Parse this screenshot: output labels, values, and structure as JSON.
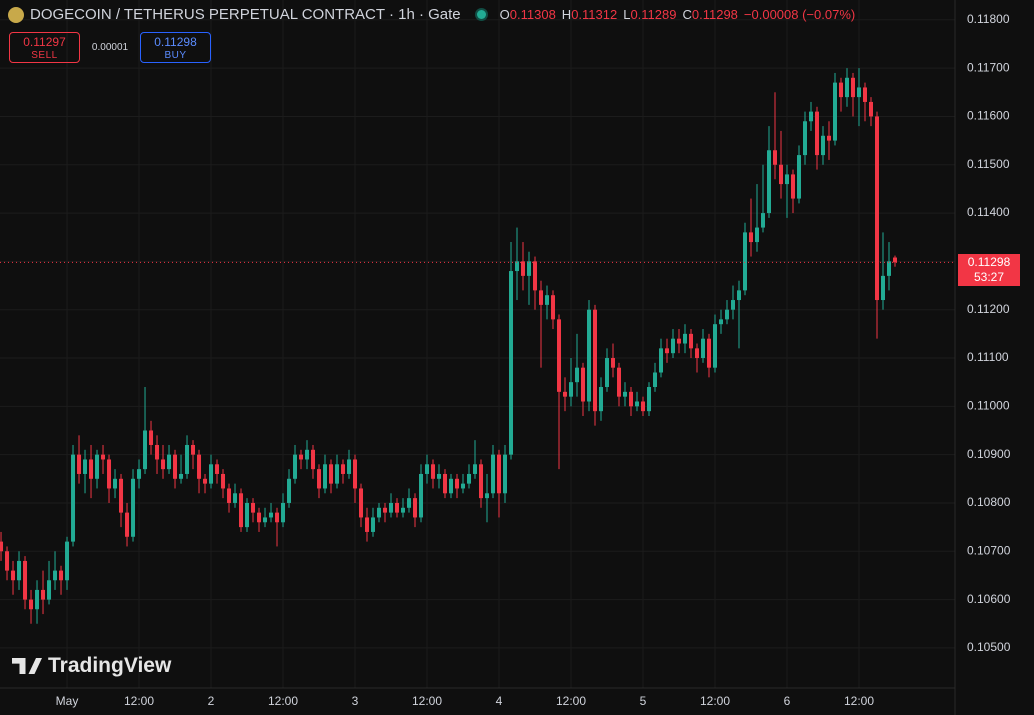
{
  "header": {
    "title": "DOGECOIN / TETHERUS PERPETUAL CONTRACT · 1h · Gate",
    "ohlc": [
      {
        "label": "O",
        "value": 0.11308
      },
      {
        "label": "H",
        "value": 0.11312
      },
      {
        "label": "L",
        "value": 0.11289
      },
      {
        "label": "C",
        "value": 0.11298
      }
    ],
    "change": "−0.00008 (−0.07%)"
  },
  "trade": {
    "sell": {
      "price": 0.11297,
      "label": "SELL"
    },
    "spread": 1e-05,
    "buy": {
      "price": 0.11298,
      "label": "BUY"
    }
  },
  "watermark": "TradingView",
  "chart_data": {
    "type": "candlestick",
    "up_color": "#22ab94",
    "down_color": "#f23645",
    "grid": true,
    "last_price": {
      "value": 0.11298,
      "countdown": "53:27"
    },
    "xlim": [
      -0.17,
      159
    ],
    "xticks": [
      {
        "value": 11,
        "label": "May"
      },
      {
        "value": 23,
        "label": "12:00"
      },
      {
        "value": 35,
        "label": "2"
      },
      {
        "value": 47,
        "label": "12:00"
      },
      {
        "value": 59,
        "label": "3"
      },
      {
        "value": 71,
        "label": "12:00"
      },
      {
        "value": 83,
        "label": "4"
      },
      {
        "value": 95,
        "label": "12:00"
      },
      {
        "value": 107,
        "label": "5"
      },
      {
        "value": 119,
        "label": "12:00"
      },
      {
        "value": 131,
        "label": "6"
      },
      {
        "value": 143,
        "label": "12:00"
      }
    ],
    "ylim": [
      0.10417,
      0.11841
    ],
    "yticks": [
      {
        "value": 0.105,
        "label": "0.10500"
      },
      {
        "value": 0.106,
        "label": "0.10600"
      },
      {
        "value": 0.107,
        "label": "0.10700"
      },
      {
        "value": 0.108,
        "label": "0.10800"
      },
      {
        "value": 0.109,
        "label": "0.10900"
      },
      {
        "value": 0.11,
        "label": "0.11000"
      },
      {
        "value": 0.111,
        "label": "0.11100"
      },
      {
        "value": 0.112,
        "label": "0.11200"
      },
      {
        "value": 0.113,
        "label": "0.11300"
      },
      {
        "value": 0.114,
        "label": "0.11400"
      },
      {
        "value": 0.115,
        "label": "0.11500"
      },
      {
        "value": 0.116,
        "label": "0.11600"
      },
      {
        "value": 0.117,
        "label": "0.11700"
      },
      {
        "value": 0.118,
        "label": "0.11800"
      }
    ],
    "open": [
      0.1072,
      0.107,
      0.1066,
      0.1064,
      0.1068,
      0.106,
      0.1058,
      0.1062,
      0.106,
      0.1064,
      0.1066,
      0.1064,
      0.1072,
      0.109,
      0.1086,
      0.1089,
      0.1085,
      0.109,
      0.1089,
      0.1083,
      0.1085,
      0.1078,
      0.1073,
      0.1085,
      0.1087,
      0.1095,
      0.1092,
      0.1089,
      0.1087,
      0.109,
      0.1085,
      0.1086,
      0.1092,
      0.109,
      0.1085,
      0.1084,
      0.1088,
      0.1086,
      0.1083,
      0.108,
      0.1082,
      0.1075,
      0.108,
      0.1078,
      0.1076,
      0.1077,
      0.1078,
      0.1076,
      0.108,
      0.1085,
      0.109,
      0.1089,
      0.1091,
      0.1087,
      0.1083,
      0.1088,
      0.1084,
      0.1088,
      0.1086,
      0.1089,
      0.1083,
      0.1077,
      0.1074,
      0.1077,
      0.1079,
      0.1078,
      0.108,
      0.1078,
      0.1079,
      0.1081,
      0.1077,
      0.1086,
      0.1088,
      0.1085,
      0.1086,
      0.1082,
      0.1085,
      0.1083,
      0.1084,
      0.1086,
      0.1088,
      0.1081,
      0.1082,
      0.109,
      0.1082,
      0.109,
      0.1128,
      0.113,
      0.1127,
      0.113,
      0.1124,
      0.1121,
      0.1123,
      0.1118,
      0.1103,
      0.1102,
      0.1105,
      0.1108,
      0.1101,
      0.112,
      0.1099,
      0.1104,
      0.111,
      0.1108,
      0.1102,
      0.1103,
      0.11,
      0.1101,
      0.1099,
      0.1104,
      0.1107,
      0.1112,
      0.1111,
      0.1114,
      0.1113,
      0.1115,
      0.1112,
      0.111,
      0.1114,
      0.1108,
      0.1117,
      0.1118,
      0.112,
      0.1122,
      0.1124,
      0.1136,
      0.1134,
      0.1137,
      0.114,
      0.1153,
      0.115,
      0.1146,
      0.1148,
      0.1143,
      0.1152,
      0.1159,
      0.1161,
      0.1152,
      0.1156,
      0.1155,
      0.1167,
      0.1164,
      0.1168,
      0.1164,
      0.1166,
      0.1163,
      0.116,
      0.1122,
      0.1127,
      0.11308
    ],
    "high": [
      0.1074,
      0.1071,
      0.1068,
      0.107,
      0.1069,
      0.1062,
      0.1064,
      0.1066,
      0.1068,
      0.107,
      0.1067,
      0.1073,
      0.1092,
      0.1094,
      0.1091,
      0.1092,
      0.1091,
      0.1092,
      0.109,
      0.1087,
      0.1086,
      0.108,
      0.1087,
      0.1089,
      0.1104,
      0.1097,
      0.1094,
      0.1092,
      0.1092,
      0.1091,
      0.109,
      0.1094,
      0.1093,
      0.1091,
      0.1086,
      0.109,
      0.1089,
      0.1087,
      0.1084,
      0.1084,
      0.1083,
      0.1081,
      0.1081,
      0.1079,
      0.1079,
      0.108,
      0.1079,
      0.1082,
      0.1087,
      0.1092,
      0.1091,
      0.1093,
      0.1092,
      0.1088,
      0.109,
      0.1089,
      0.109,
      0.1089,
      0.1091,
      0.109,
      0.1084,
      0.1079,
      0.1079,
      0.108,
      0.108,
      0.1082,
      0.1081,
      0.1081,
      0.1083,
      0.1082,
      0.1088,
      0.109,
      0.1089,
      0.1088,
      0.1087,
      0.1086,
      0.1086,
      0.1086,
      0.1088,
      0.1093,
      0.1089,
      0.1086,
      0.1092,
      0.1091,
      0.1092,
      0.1134,
      0.1137,
      0.1134,
      0.1132,
      0.1131,
      0.1126,
      0.1125,
      0.1124,
      0.1119,
      0.1106,
      0.111,
      0.1115,
      0.1109,
      0.1122,
      0.1121,
      0.1106,
      0.1112,
      0.1113,
      0.1109,
      0.1105,
      0.1104,
      0.1103,
      0.1102,
      0.1105,
      0.1109,
      0.1114,
      0.1114,
      0.1116,
      0.1116,
      0.1117,
      0.1116,
      0.1113,
      0.1116,
      0.1115,
      0.1119,
      0.112,
      0.1122,
      0.1125,
      0.1126,
      0.1138,
      0.1143,
      0.1146,
      0.115,
      0.1158,
      0.1165,
      0.1157,
      0.115,
      0.1149,
      0.1154,
      0.1161,
      0.1163,
      0.1162,
      0.1158,
      0.1159,
      0.1169,
      0.1168,
      0.117,
      0.1169,
      0.117,
      0.1167,
      0.1164,
      0.1161,
      0.1136,
      0.1134,
      0.11312
    ],
    "low": [
      0.1068,
      0.1064,
      0.1061,
      0.1062,
      0.1058,
      0.1055,
      0.1055,
      0.1057,
      0.1059,
      0.1062,
      0.1061,
      0.1062,
      0.1071,
      0.1084,
      0.1082,
      0.1081,
      0.1083,
      0.1086,
      0.108,
      0.1081,
      0.1075,
      0.1071,
      0.1072,
      0.1083,
      0.1086,
      0.109,
      0.1086,
      0.1085,
      0.1086,
      0.1083,
      0.1084,
      0.1085,
      0.1087,
      0.1082,
      0.1082,
      0.1083,
      0.1084,
      0.1081,
      0.1078,
      0.1079,
      0.1074,
      0.1074,
      0.1076,
      0.1074,
      0.1075,
      0.1076,
      0.1071,
      0.1075,
      0.1079,
      0.1084,
      0.1087,
      0.1087,
      0.1085,
      0.1081,
      0.1082,
      0.1082,
      0.1083,
      0.1084,
      0.1085,
      0.108,
      0.1075,
      0.1072,
      0.1073,
      0.1076,
      0.1076,
      0.1077,
      0.1077,
      0.1077,
      0.1078,
      0.1075,
      0.1076,
      0.1084,
      0.1083,
      0.1083,
      0.1081,
      0.1081,
      0.1081,
      0.1082,
      0.1083,
      0.1085,
      0.1079,
      0.1076,
      0.1081,
      0.1077,
      0.108,
      0.1089,
      0.1122,
      0.1124,
      0.1121,
      0.112,
      0.1108,
      0.1118,
      0.1116,
      0.1087,
      0.1099,
      0.11,
      0.1102,
      0.1098,
      0.1099,
      0.1096,
      0.1097,
      0.1103,
      0.1106,
      0.11,
      0.11,
      0.1098,
      0.1099,
      0.1098,
      0.1098,
      0.1103,
      0.1106,
      0.1109,
      0.111,
      0.1111,
      0.1111,
      0.111,
      0.1107,
      0.1109,
      0.1106,
      0.1107,
      0.1115,
      0.1117,
      0.1118,
      0.1112,
      0.1123,
      0.1131,
      0.1132,
      0.1136,
      0.1139,
      0.1147,
      0.1143,
      0.1139,
      0.114,
      0.1142,
      0.115,
      0.1157,
      0.1149,
      0.115,
      0.1151,
      0.1154,
      0.1161,
      0.1162,
      0.116,
      0.1158,
      0.1159,
      0.1158,
      0.1114,
      0.112,
      0.1124,
      0.11289
    ],
    "close": [
      0.107,
      0.1066,
      0.1064,
      0.1068,
      0.106,
      0.1058,
      0.1062,
      0.106,
      0.1064,
      0.1066,
      0.1064,
      0.1072,
      0.109,
      0.1086,
      0.1089,
      0.1085,
      0.109,
      0.1089,
      0.1083,
      0.1085,
      0.1078,
      0.1073,
      0.1085,
      0.1087,
      0.1095,
      0.1092,
      0.1089,
      0.1087,
      0.109,
      0.1085,
      0.1086,
      0.1092,
      0.109,
      0.1085,
      0.1084,
      0.1088,
      0.1086,
      0.1083,
      0.108,
      0.1082,
      0.1075,
      0.108,
      0.1078,
      0.1076,
      0.1077,
      0.1078,
      0.1076,
      0.108,
      0.1085,
      0.109,
      0.1089,
      0.1091,
      0.1087,
      0.1083,
      0.1088,
      0.1084,
      0.1088,
      0.1086,
      0.1089,
      0.1083,
      0.1077,
      0.1074,
      0.1077,
      0.1079,
      0.1078,
      0.108,
      0.1078,
      0.1079,
      0.1081,
      0.1077,
      0.1086,
      0.1088,
      0.1085,
      0.1086,
      0.1082,
      0.1085,
      0.1083,
      0.1084,
      0.1086,
      0.1088,
      0.1081,
      0.1082,
      0.109,
      0.1082,
      0.109,
      0.1128,
      0.113,
      0.1127,
      0.113,
      0.1124,
      0.1121,
      0.1123,
      0.1118,
      0.1103,
      0.1102,
      0.1105,
      0.1108,
      0.1101,
      0.112,
      0.1099,
      0.1104,
      0.111,
      0.1108,
      0.1102,
      0.1103,
      0.11,
      0.1101,
      0.1099,
      0.1104,
      0.1107,
      0.1112,
      0.1111,
      0.1114,
      0.1113,
      0.1115,
      0.1112,
      0.111,
      0.1114,
      0.1108,
      0.1117,
      0.1118,
      0.112,
      0.1122,
      0.1124,
      0.1136,
      0.1134,
      0.1137,
      0.114,
      0.1153,
      0.115,
      0.1146,
      0.1148,
      0.1143,
      0.1152,
      0.1159,
      0.1161,
      0.1152,
      0.1156,
      0.1155,
      0.1167,
      0.1164,
      0.1168,
      0.1164,
      0.1166,
      0.1163,
      0.116,
      0.1122,
      0.1127,
      0.113,
      0.11298
    ]
  }
}
